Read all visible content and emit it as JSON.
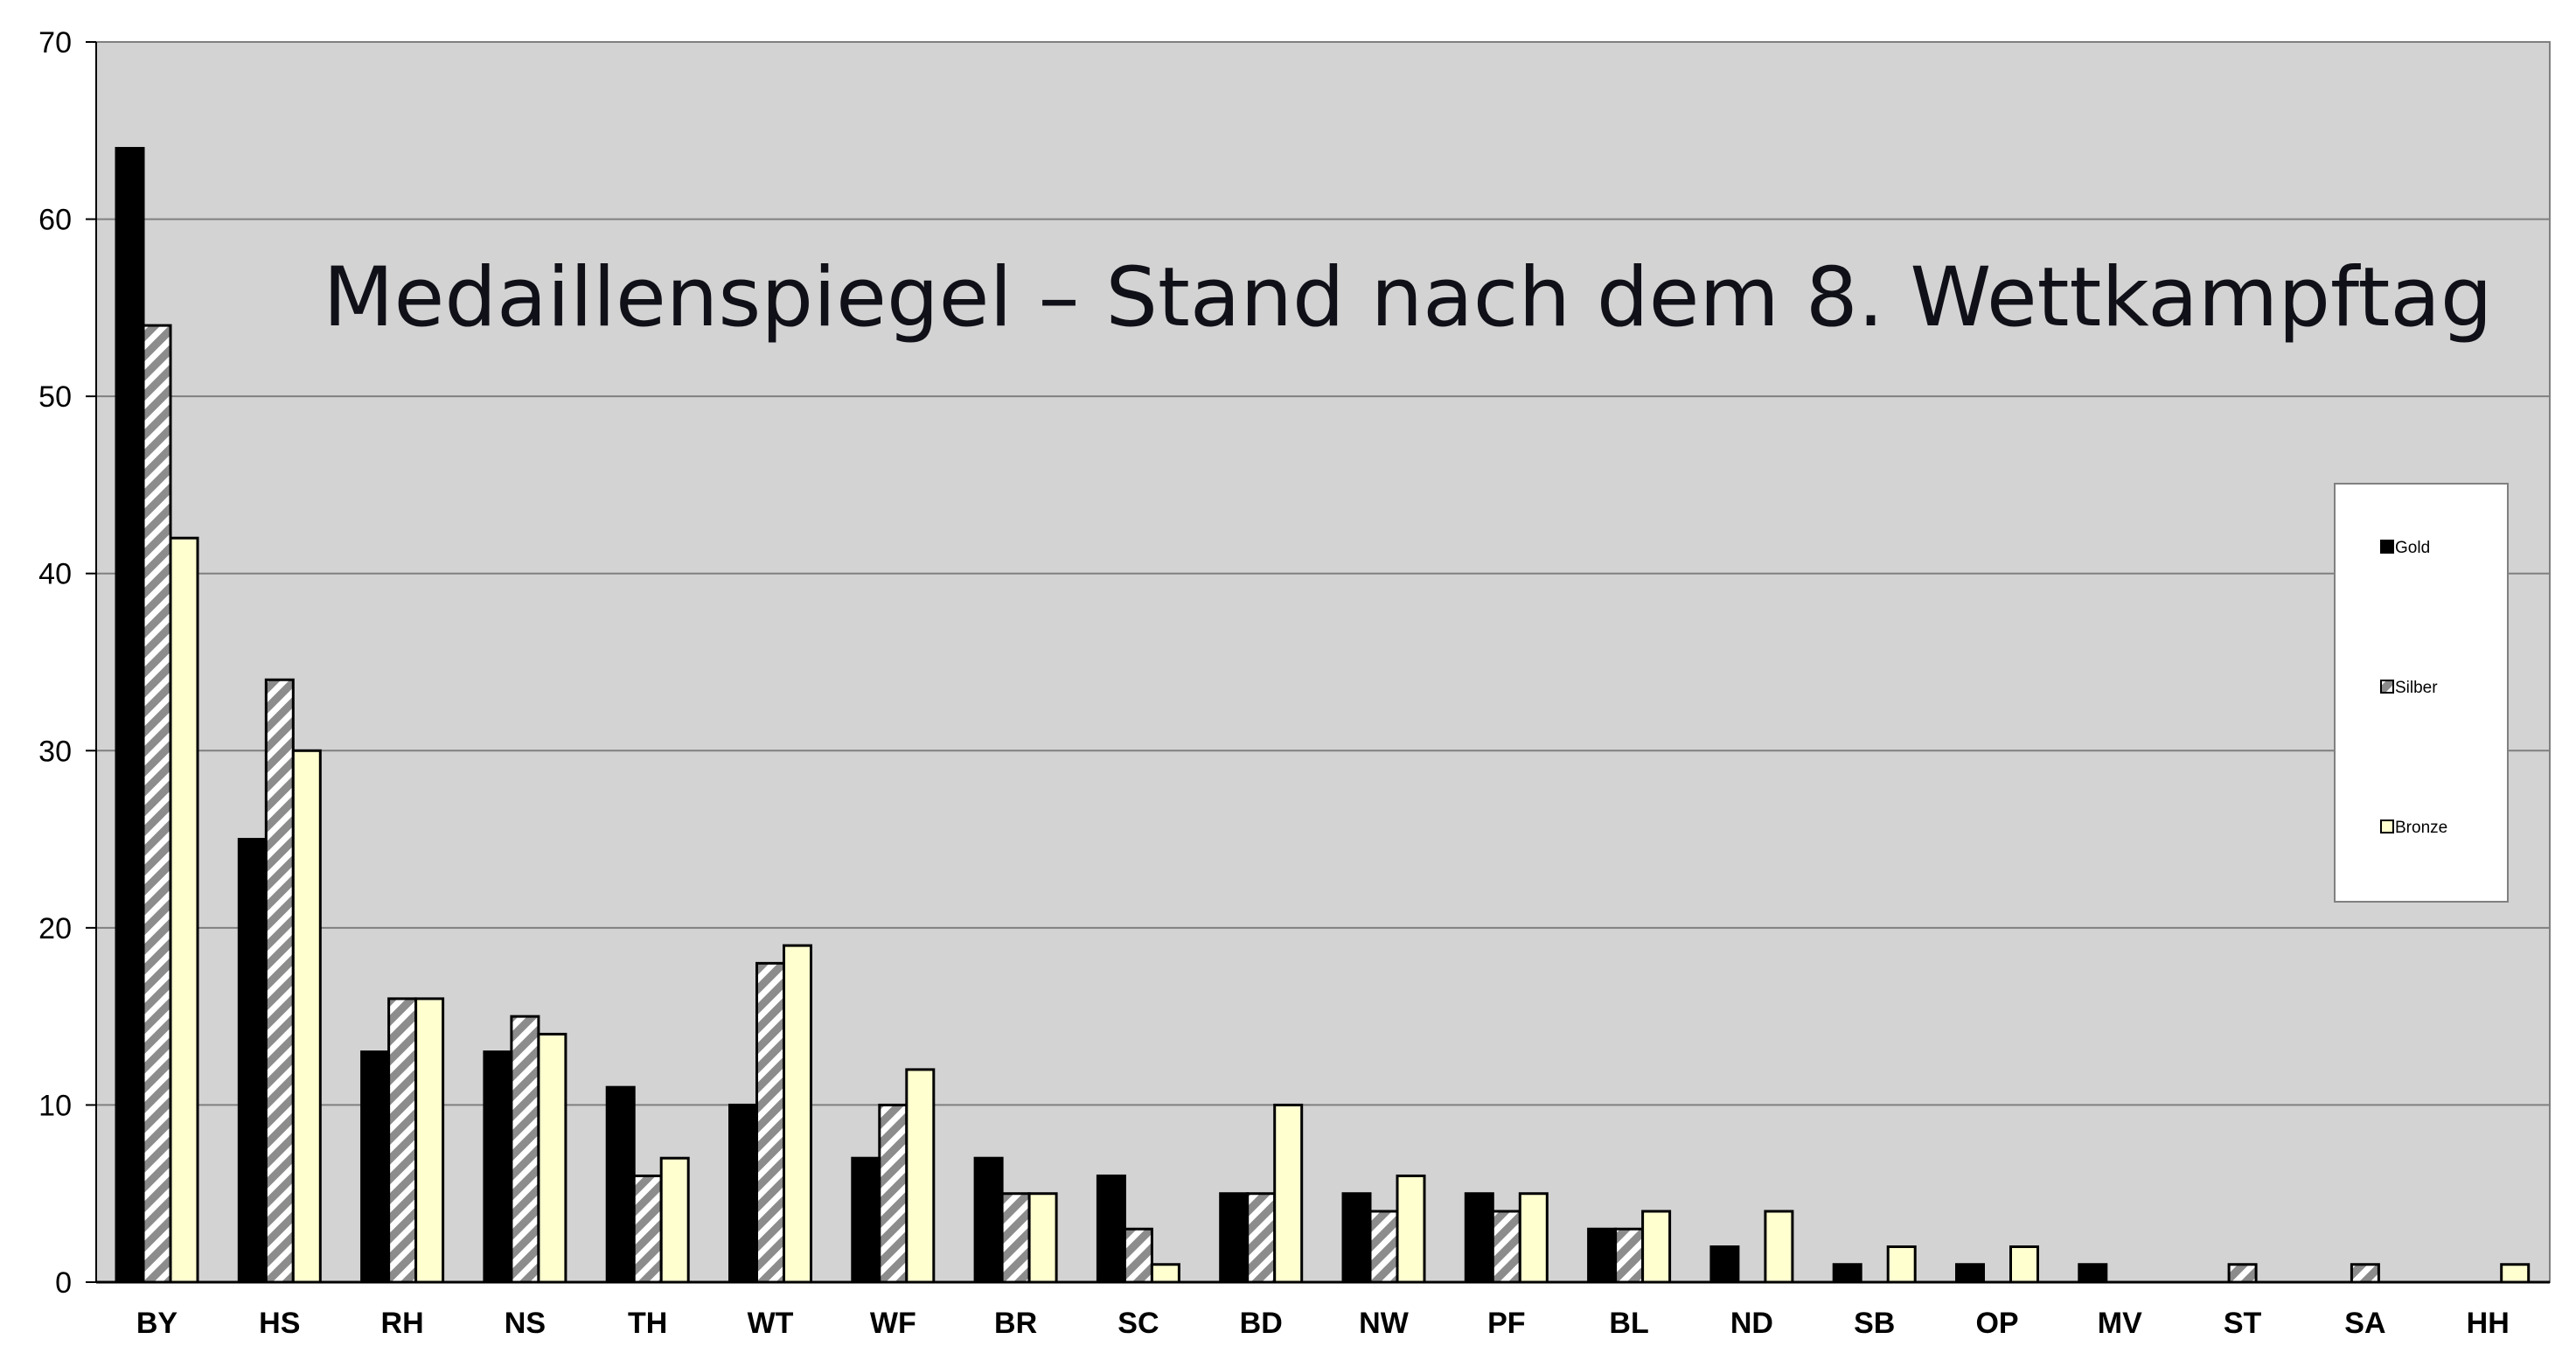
{
  "chart_data": {
    "type": "bar",
    "title": "Medaillenspiegel – Stand nach dem 8. Wettkampftag",
    "xlabel": "",
    "ylabel": "",
    "ylim": [
      0,
      70
    ],
    "yticks": [
      0,
      10,
      20,
      30,
      40,
      50,
      60,
      70
    ],
    "grid": true,
    "legend_position": "right",
    "categories": [
      "BY",
      "HS",
      "RH",
      "NS",
      "TH",
      "WT",
      "WF",
      "BR",
      "SC",
      "BD",
      "NW",
      "PF",
      "BL",
      "ND",
      "SB",
      "OP",
      "MV",
      "ST",
      "SA",
      "HH"
    ],
    "series": [
      {
        "name": "Gold",
        "color": "#000000",
        "pattern": "solid",
        "values": [
          64,
          25,
          13,
          13,
          11,
          10,
          7,
          7,
          6,
          5,
          5,
          5,
          3,
          2,
          1,
          1,
          1,
          0,
          0,
          0
        ]
      },
      {
        "name": "Silber",
        "color": "#8c8c8c",
        "pattern": "diagonal-stripes",
        "values": [
          54,
          34,
          16,
          15,
          6,
          18,
          10,
          5,
          3,
          5,
          4,
          4,
          3,
          0,
          0,
          0,
          0,
          1,
          1,
          0
        ]
      },
      {
        "name": "Bronze",
        "color": "#ffffd0",
        "pattern": "solid",
        "values": [
          42,
          30,
          16,
          14,
          7,
          19,
          12,
          5,
          1,
          10,
          6,
          5,
          4,
          4,
          2,
          2,
          0,
          0,
          0,
          1
        ]
      }
    ],
    "colors": {
      "plot_background": "#d3d3d3",
      "gridline": "#808080"
    }
  }
}
